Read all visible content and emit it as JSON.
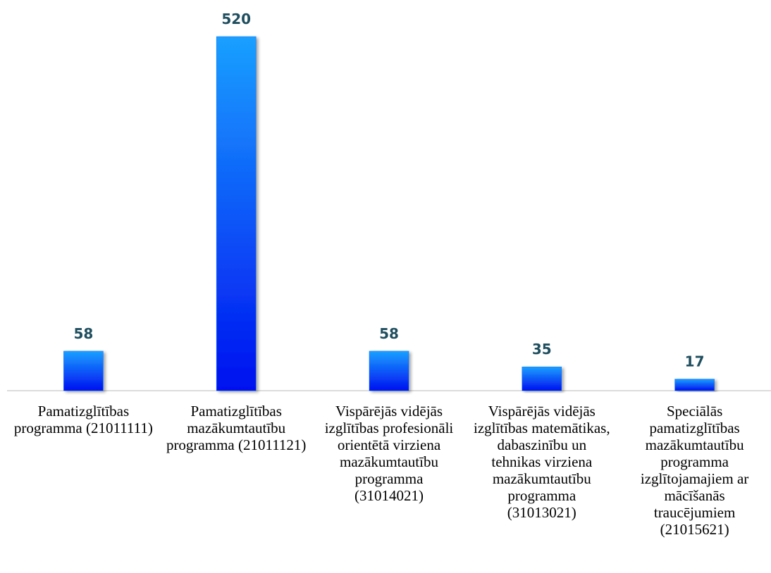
{
  "chart_data": {
    "type": "bar",
    "categories": [
      "Pamatizglītības programma (21011111)",
      "Pamatizglītības mazākumtautību programma (21011121)",
      "Vispārējās vidējās izglītības profesionāli orientētā virziena mazākumtautību programma (31014021)",
      "Vispārējās vidējās izglītības matemātikas, dabaszinību un tehnikas virziena mazākumtautību programma (31013021)",
      "Speciālās pamatizglītības mazākumtautību programma izglītojamajiem ar mācīšanās traucējumiem (21015621)"
    ],
    "values": [
      58,
      520,
      58,
      35,
      17
    ],
    "color": "#0a6cff"
  }
}
